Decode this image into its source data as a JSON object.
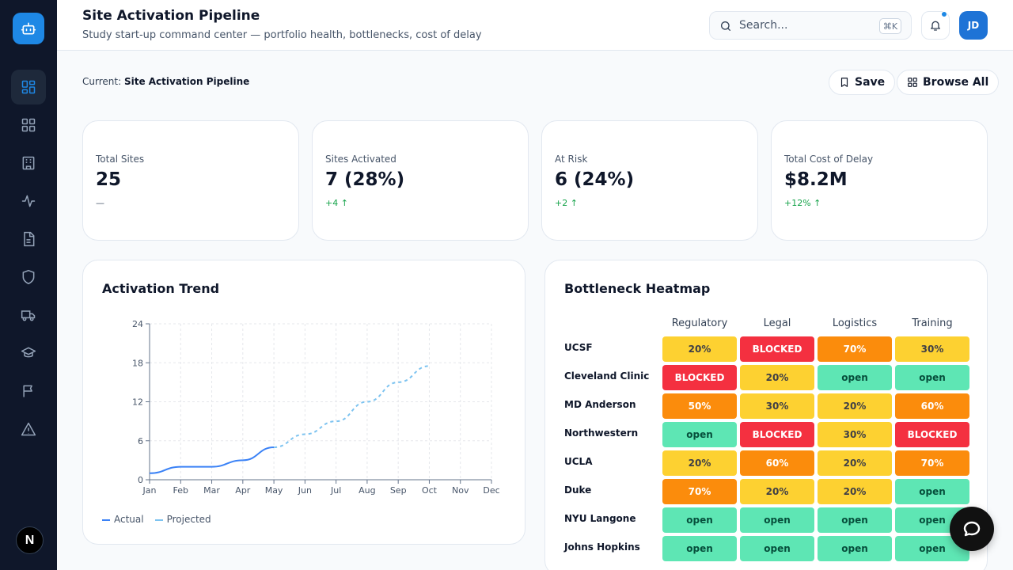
{
  "header": {
    "title": "Site Activation Pipeline",
    "subtitle": "Study start-up command center — portfolio health, bottlenecks, cost of delay",
    "search_placeholder": "Search...",
    "search_shortcut": "⌘K",
    "avatar_initials": "JD"
  },
  "sidebar": {
    "items": [
      {
        "icon": "dashboard-icon",
        "active": true
      },
      {
        "icon": "grid-icon",
        "active": false
      },
      {
        "icon": "building-icon",
        "active": false
      },
      {
        "icon": "activity-icon",
        "active": false
      },
      {
        "icon": "document-icon",
        "active": false
      },
      {
        "icon": "shield-icon",
        "active": false
      },
      {
        "icon": "truck-icon",
        "active": false
      },
      {
        "icon": "graduation-cap-icon",
        "active": false
      },
      {
        "icon": "flag-icon",
        "active": false
      },
      {
        "icon": "alert-triangle-icon",
        "active": false
      }
    ],
    "footer_badge": "N"
  },
  "toolbar": {
    "current_label": "Current:",
    "current_value": "Site Activation Pipeline",
    "save_label": "Save",
    "browse_label": "Browse All"
  },
  "kpis": [
    {
      "label": "Total Sites",
      "value": "25",
      "delta": "—"
    },
    {
      "label": "Sites Activated",
      "value": "7 (28%)",
      "delta": "+4 ↑"
    },
    {
      "label": "At Risk",
      "value": "6 (24%)",
      "delta": "+2 ↑"
    },
    {
      "label": "Total Cost of Delay",
      "value": "$8.2M",
      "delta": "+12% ↑"
    }
  ],
  "trend": {
    "title": "Activation Trend",
    "legend_actual": "Actual",
    "legend_projected": "Projected",
    "colors": {
      "actual": "#3b82f6",
      "projected": "#7dc3f0"
    }
  },
  "chart_data": {
    "type": "line",
    "x": [
      "Jan",
      "Feb",
      "Mar",
      "Apr",
      "May",
      "Jun",
      "Jul",
      "Aug",
      "Sep",
      "Oct",
      "Nov",
      "Dec"
    ],
    "ylim": [
      0,
      24
    ],
    "yticks": [
      0,
      6,
      12,
      18,
      24
    ],
    "series": [
      {
        "name": "Actual",
        "values": [
          1,
          2,
          2,
          3,
          5,
          null,
          null,
          null,
          null,
          null,
          null,
          null
        ]
      },
      {
        "name": "Projected",
        "values": [
          null,
          null,
          null,
          null,
          5,
          7,
          9,
          12,
          15,
          17.5,
          null,
          null
        ]
      }
    ]
  },
  "heatmap": {
    "title": "Bottleneck Heatmap",
    "columns": [
      "Regulatory",
      "Legal",
      "Logistics",
      "Training"
    ],
    "rows": [
      {
        "site": "UCSF",
        "cells": [
          "20%",
          "BLOCKED",
          "70%",
          "30%"
        ]
      },
      {
        "site": "Cleveland Clinic",
        "cells": [
          "BLOCKED",
          "20%",
          "open",
          "open"
        ]
      },
      {
        "site": "MD Anderson",
        "cells": [
          "50%",
          "30%",
          "20%",
          "60%"
        ]
      },
      {
        "site": "Northwestern",
        "cells": [
          "open",
          "BLOCKED",
          "30%",
          "BLOCKED"
        ]
      },
      {
        "site": "UCLA",
        "cells": [
          "20%",
          "60%",
          "20%",
          "70%"
        ]
      },
      {
        "site": "Duke",
        "cells": [
          "70%",
          "20%",
          "20%",
          "open"
        ]
      },
      {
        "site": "NYU Langone",
        "cells": [
          "open",
          "open",
          "open",
          "open"
        ]
      },
      {
        "site": "Johns Hopkins",
        "cells": [
          "open",
          "open",
          "open",
          "open"
        ]
      }
    ]
  }
}
